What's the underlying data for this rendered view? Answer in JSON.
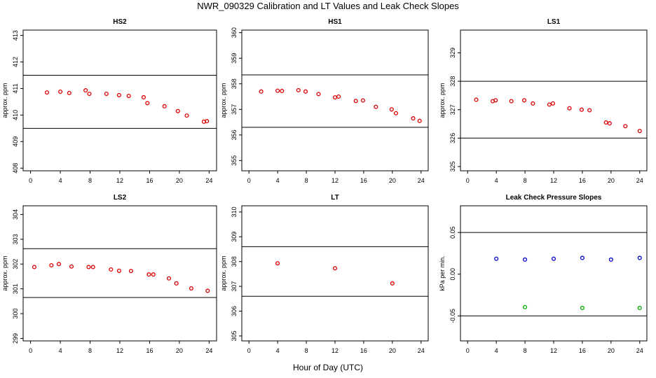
{
  "title": "NWR_090329  Calibration and LT Values and Leak Check Slopes",
  "x_axis_label": "Hour of Day (UTC)",
  "colors": {
    "red": "#e00000",
    "blue": "#0000cc",
    "green": "#00aa00",
    "line": "#000000"
  },
  "chart_data": [
    {
      "type": "scatter",
      "title": "HS2",
      "ylabel": "approx. ppm",
      "xlim": [
        -1,
        25
      ],
      "ylim": [
        407.9,
        413.2
      ],
      "x_ticks": [
        0,
        4,
        8,
        12,
        16,
        20,
        24
      ],
      "y_ticks": [
        408,
        409,
        410,
        411,
        412,
        413
      ],
      "hlines": [
        409.5,
        411.5
      ],
      "series": [
        {
          "name": "HS2",
          "color": "red",
          "x": [
            2.2,
            4.0,
            5.2,
            7.4,
            7.9,
            10.2,
            11.9,
            13.2,
            15.2,
            15.7,
            18.0,
            19.8,
            21.0,
            23.3,
            23.7
          ],
          "y": [
            410.85,
            410.88,
            410.83,
            410.93,
            410.8,
            410.8,
            410.75,
            410.72,
            410.67,
            410.45,
            410.33,
            410.15,
            409.98,
            409.75,
            409.77
          ]
        }
      ]
    },
    {
      "type": "scatter",
      "title": "HS1",
      "ylabel": "approx. ppm",
      "xlim": [
        -1,
        25
      ],
      "ylim": [
        354.6,
        360.1
      ],
      "x_ticks": [
        0,
        4,
        8,
        12,
        16,
        20,
        24
      ],
      "y_ticks": [
        355,
        356,
        357,
        358,
        359,
        360
      ],
      "hlines": [
        356.3,
        358.35
      ],
      "series": [
        {
          "name": "HS1",
          "color": "red",
          "x": [
            1.7,
            4.0,
            4.6,
            6.9,
            7.9,
            9.7,
            12.0,
            12.5,
            14.9,
            15.9,
            17.7,
            19.9,
            20.5,
            22.9,
            23.8
          ],
          "y": [
            357.7,
            357.73,
            357.72,
            357.75,
            357.7,
            357.6,
            357.47,
            357.5,
            357.33,
            357.35,
            357.1,
            357.0,
            356.85,
            356.65,
            356.55
          ]
        }
      ]
    },
    {
      "type": "scatter",
      "title": "LS1",
      "ylabel": "approx. ppm",
      "xlim": [
        -1,
        25
      ],
      "ylim": [
        324.85,
        329.8
      ],
      "x_ticks": [
        0,
        4,
        8,
        12,
        16,
        20,
        24
      ],
      "y_ticks": [
        325,
        326,
        327,
        328,
        329
      ],
      "hlines": [
        326.0,
        328.0
      ],
      "series": [
        {
          "name": "LS1",
          "color": "red",
          "x": [
            1.2,
            3.5,
            3.9,
            6.1,
            7.9,
            9.1,
            11.4,
            11.9,
            14.2,
            15.9,
            17.0,
            19.3,
            19.8,
            22.0,
            24.0
          ],
          "y": [
            327.35,
            327.3,
            327.33,
            327.3,
            327.33,
            327.22,
            327.18,
            327.22,
            327.05,
            327.0,
            326.98,
            326.55,
            326.52,
            326.42,
            326.25
          ]
        }
      ]
    },
    {
      "type": "scatter",
      "title": "LS2",
      "ylabel": "approx. ppm",
      "xlim": [
        -1,
        25
      ],
      "ylim": [
        298.9,
        304.35
      ],
      "x_ticks": [
        0,
        4,
        8,
        12,
        16,
        20,
        24
      ],
      "y_ticks": [
        299,
        300,
        301,
        302,
        303,
        304
      ],
      "hlines": [
        300.65,
        302.62
      ],
      "series": [
        {
          "name": "LS2",
          "color": "red",
          "x": [
            0.5,
            2.8,
            3.8,
            5.5,
            7.8,
            8.4,
            10.8,
            11.9,
            13.5,
            15.9,
            16.5,
            18.6,
            19.6,
            21.6,
            23.8
          ],
          "y": [
            301.88,
            301.95,
            302.0,
            301.9,
            301.88,
            301.88,
            301.78,
            301.73,
            301.72,
            301.58,
            301.58,
            301.42,
            301.22,
            301.02,
            300.92
          ]
        }
      ]
    },
    {
      "type": "scatter",
      "title": "LT",
      "ylabel": "approx. ppm",
      "xlim": [
        -1,
        25
      ],
      "ylim": [
        304.8,
        310.25
      ],
      "x_ticks": [
        0,
        4,
        8,
        12,
        16,
        20,
        24
      ],
      "y_ticks": [
        305,
        306,
        307,
        308,
        309,
        310
      ],
      "hlines": [
        306.6,
        308.6
      ],
      "series": [
        {
          "name": "LT",
          "color": "red",
          "x": [
            4.0,
            12.0,
            20.0
          ],
          "y": [
            307.93,
            307.73,
            307.12
          ]
        }
      ]
    },
    {
      "type": "scatter",
      "title": "Leak Check Pressure Slopes",
      "ylabel": "kPa per min.",
      "xlim": [
        -1,
        25
      ],
      "ylim": [
        -0.08,
        0.082
      ],
      "x_ticks": [
        0,
        4,
        8,
        12,
        16,
        20,
        24
      ],
      "y_ticks": [
        -0.05,
        0.0,
        0.05
      ],
      "y_tick_labels": [
        "-0.05",
        "0.00",
        "0.05"
      ],
      "hlines": [
        -0.05,
        0.05
      ],
      "series": [
        {
          "name": "blue",
          "color": "blue",
          "x": [
            4,
            8,
            12,
            16,
            20,
            24
          ],
          "y": [
            0.0185,
            0.0175,
            0.0185,
            0.0195,
            0.0175,
            0.0195
          ]
        },
        {
          "name": "green",
          "color": "green",
          "x": [
            8,
            16,
            24
          ],
          "y": [
            -0.0395,
            -0.0405,
            -0.0405
          ]
        }
      ]
    }
  ]
}
